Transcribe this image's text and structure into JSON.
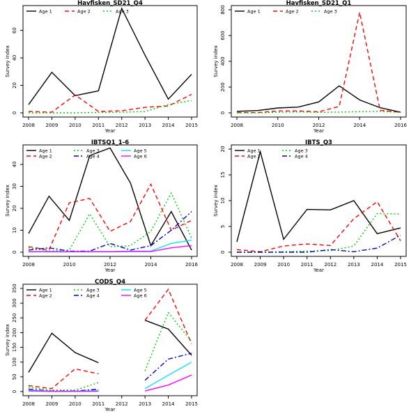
{
  "page": {
    "background": "#ffffff"
  },
  "chart_data": [
    {
      "type": "line",
      "title": "Havfisken_SD21_Q4",
      "xlabel": "Year",
      "ylabel": "Survey index",
      "xlim": [
        2008,
        2015
      ],
      "ylim": [
        0,
        75
      ],
      "xticks": [
        2008,
        2009,
        2010,
        2011,
        2012,
        2013,
        2014,
        2015
      ],
      "yticks": [
        0,
        20,
        40,
        60
      ],
      "grid": false,
      "legend": "top-left",
      "series": [
        {
          "name": "Age 1",
          "color": "#000000",
          "dash": "solid",
          "points": [
            [
              2008,
              6
            ],
            [
              2009,
              29.5
            ],
            [
              2010,
              12.5
            ],
            [
              2011,
              16
            ],
            [
              2012,
              76
            ],
            [
              2013,
              42
            ],
            [
              2014,
              10
            ],
            [
              2015,
              28
            ]
          ]
        },
        {
          "name": "Age 2",
          "color": "#ff0000",
          "dash": "dashed",
          "points": [
            [
              2008,
              1
            ],
            [
              2009,
              0.5
            ],
            [
              2010,
              13
            ],
            [
              2011,
              1
            ],
            [
              2012,
              1.5
            ],
            [
              2013,
              4
            ],
            [
              2014,
              5
            ],
            [
              2015,
              13.5
            ]
          ]
        },
        {
          "name": "Age 3",
          "color": "#00cc00",
          "dash": "dotted",
          "points": [
            [
              2008,
              0
            ],
            [
              2009,
              0
            ],
            [
              2010,
              0
            ],
            [
              2011,
              0.3
            ],
            [
              2012,
              0.5
            ],
            [
              2013,
              1
            ],
            [
              2014,
              6
            ],
            [
              2015,
              9
            ]
          ]
        }
      ]
    },
    {
      "type": "line",
      "title": "Havfisken_SD21_Q1",
      "xlabel": "Year",
      "ylabel": "Survey index",
      "xlim": [
        2008,
        2016
      ],
      "ylim": [
        0,
        800
      ],
      "xticks": [
        2008,
        2010,
        2012,
        2014,
        2016
      ],
      "yticks": [
        0,
        200,
        400,
        600,
        800
      ],
      "grid": false,
      "legend": "top-left",
      "series": [
        {
          "name": "Age 1",
          "color": "#000000",
          "dash": "solid",
          "points": [
            [
              2008,
              12
            ],
            [
              2009,
              18
            ],
            [
              2010,
              38
            ],
            [
              2011,
              45
            ],
            [
              2012,
              85
            ],
            [
              2013,
              210
            ],
            [
              2014,
              100
            ],
            [
              2015,
              40
            ],
            [
              2016,
              5
            ]
          ]
        },
        {
          "name": "Age 2",
          "color": "#ff0000",
          "dash": "dashed",
          "points": [
            [
              2008,
              2
            ],
            [
              2009,
              2
            ],
            [
              2010,
              15
            ],
            [
              2011,
              15
            ],
            [
              2012,
              8
            ],
            [
              2013,
              50
            ],
            [
              2014,
              780
            ],
            [
              2015,
              20
            ],
            [
              2016,
              5
            ]
          ]
        },
        {
          "name": "Age 3",
          "color": "#00cc00",
          "dash": "dotted",
          "points": [
            [
              2008,
              0
            ],
            [
              2009,
              0
            ],
            [
              2010,
              5
            ],
            [
              2011,
              8
            ],
            [
              2012,
              3
            ],
            [
              2013,
              6
            ],
            [
              2014,
              10
            ],
            [
              2015,
              12
            ],
            [
              2016,
              3
            ]
          ]
        }
      ]
    },
    {
      "type": "line",
      "title": "IBTSQ1_1-6",
      "xlabel": "Year",
      "ylabel": "Survey index",
      "xlim": [
        2008,
        2016
      ],
      "ylim": [
        0,
        47
      ],
      "xticks": [
        2008,
        2010,
        2012,
        2014,
        2016
      ],
      "yticks": [
        0,
        10,
        20,
        30,
        40
      ],
      "grid": false,
      "legend": "top-left",
      "series": [
        {
          "name": "Age 1",
          "color": "#000000",
          "dash": "solid",
          "points": [
            [
              2008,
              8.5
            ],
            [
              2009,
              25.5
            ],
            [
              2010,
              14.5
            ],
            [
              2011,
              44
            ],
            [
              2012,
              47.5
            ],
            [
              2013,
              31.5
            ],
            [
              2014,
              3
            ],
            [
              2015,
              18.5
            ],
            [
              2016,
              1
            ]
          ]
        },
        {
          "name": "Age 2",
          "color": "#ff0000",
          "dash": "dashed",
          "points": [
            [
              2008,
              2.5
            ],
            [
              2009,
              1
            ],
            [
              2010,
              22.5
            ],
            [
              2011,
              24.5
            ],
            [
              2012,
              9.5
            ],
            [
              2013,
              14
            ],
            [
              2014,
              31
            ],
            [
              2015,
              10
            ],
            [
              2016,
              14.5
            ]
          ]
        },
        {
          "name": "Age 3",
          "color": "#00cc00",
          "dash": "dotted",
          "points": [
            [
              2008,
              2
            ],
            [
              2009,
              0.5
            ],
            [
              2010,
              1
            ],
            [
              2011,
              17.5
            ],
            [
              2012,
              2.5
            ],
            [
              2013,
              3
            ],
            [
              2014,
              9.5
            ],
            [
              2015,
              27
            ],
            [
              2016,
              6.5
            ]
          ]
        },
        {
          "name": "Age 4",
          "color": "#0000cc",
          "dash": "dashdot",
          "points": [
            [
              2008,
              1
            ],
            [
              2009,
              2
            ],
            [
              2010,
              0.5
            ],
            [
              2011,
              0.5
            ],
            [
              2012,
              4
            ],
            [
              2013,
              1
            ],
            [
              2014,
              3
            ],
            [
              2015,
              10
            ],
            [
              2016,
              18.5
            ]
          ]
        },
        {
          "name": "Age 5",
          "color": "#00e5ff",
          "dash": "solid",
          "points": [
            [
              2008,
              0.3
            ],
            [
              2009,
              0.3
            ],
            [
              2010,
              0.3
            ],
            [
              2011,
              0.3
            ],
            [
              2012,
              0.3
            ],
            [
              2013,
              0.5
            ],
            [
              2014,
              0.5
            ],
            [
              2015,
              4
            ],
            [
              2016,
              5.5
            ]
          ]
        },
        {
          "name": "Age 6",
          "color": "#ff00ff",
          "dash": "solid",
          "points": [
            [
              2008,
              0.2
            ],
            [
              2009,
              0.2
            ],
            [
              2010,
              0.2
            ],
            [
              2011,
              0.2
            ],
            [
              2012,
              0.2
            ],
            [
              2013,
              0.3
            ],
            [
              2014,
              0.3
            ],
            [
              2015,
              2
            ],
            [
              2016,
              3
            ]
          ]
        }
      ]
    },
    {
      "type": "line",
      "title": "IBTS_Q3",
      "xlabel": "Year",
      "ylabel": "Survey index",
      "xlim": [
        2008,
        2015
      ],
      "ylim": [
        0,
        20
      ],
      "xticks": [
        2008,
        2009,
        2010,
        2011,
        2012,
        2013,
        2014,
        2015
      ],
      "yticks": [
        0,
        5,
        10,
        15,
        20
      ],
      "grid": false,
      "legend": "top-left",
      "series": [
        {
          "name": "Age 1",
          "color": "#000000",
          "dash": "solid",
          "points": [
            [
              2008,
              2
            ],
            [
              2009,
              19.5
            ],
            [
              2010,
              2.5
            ],
            [
              2011,
              8.3
            ],
            [
              2012,
              8.2
            ],
            [
              2013,
              10
            ],
            [
              2014,
              3.6
            ],
            [
              2015,
              4.7
            ]
          ]
        },
        {
          "name": "Age 2",
          "color": "#ff0000",
          "dash": "dashed",
          "points": [
            [
              2008,
              0.5
            ],
            [
              2009,
              0.1
            ],
            [
              2010,
              1.2
            ],
            [
              2011,
              1.6
            ],
            [
              2012,
              1.3
            ],
            [
              2013,
              6.5
            ],
            [
              2014,
              9.8
            ],
            [
              2015,
              2.2
            ]
          ]
        },
        {
          "name": "Age 3",
          "color": "#00cc00",
          "dash": "dotted",
          "points": [
            [
              2008,
              0
            ],
            [
              2009,
              0
            ],
            [
              2010,
              0.1
            ],
            [
              2011,
              0.2
            ],
            [
              2012,
              0.3
            ],
            [
              2013,
              1.2
            ],
            [
              2014,
              7.5
            ],
            [
              2015,
              7.4
            ]
          ]
        },
        {
          "name": "Age 4",
          "color": "#0000cc",
          "dash": "dashdot",
          "points": [
            [
              2008,
              0
            ],
            [
              2009,
              0
            ],
            [
              2010,
              0
            ],
            [
              2011,
              0
            ],
            [
              2012,
              0.5
            ],
            [
              2013,
              0.1
            ],
            [
              2014,
              0.8
            ],
            [
              2015,
              3.3
            ]
          ]
        }
      ]
    },
    {
      "type": "line",
      "title": "CODS_Q4",
      "xlabel": "Year",
      "ylabel": "Survey index",
      "xlim": [
        2008,
        2015
      ],
      "ylim": [
        0,
        350
      ],
      "xticks": [
        2008,
        2009,
        2010,
        2011,
        2012,
        2013,
        2014,
        2015
      ],
      "yticks": [
        0,
        50,
        100,
        150,
        200,
        250,
        300,
        350
      ],
      "grid": false,
      "legend": "top-left",
      "series": [
        {
          "name": "Age 1",
          "color": "#000000",
          "dash": "solid",
          "points": [
            [
              2008,
              65
            ],
            [
              2009,
              198
            ],
            [
              2010,
              132
            ],
            [
              2011,
              98
            ],
            [
              2012,
              null
            ],
            [
              2013,
              242
            ],
            [
              2014,
              212
            ],
            [
              2015,
              123
            ]
          ]
        },
        {
          "name": "Age 2",
          "color": "#ff0000",
          "dash": "dashed",
          "points": [
            [
              2008,
              20
            ],
            [
              2009,
              10
            ],
            [
              2010,
              77
            ],
            [
              2011,
              60
            ],
            [
              2012,
              null
            ],
            [
              2013,
              242
            ],
            [
              2014,
              347
            ],
            [
              2015,
              162
            ]
          ]
        },
        {
          "name": "Age 3",
          "color": "#00cc00",
          "dash": "dotted",
          "points": [
            [
              2008,
              15
            ],
            [
              2009,
              5
            ],
            [
              2010,
              5
            ],
            [
              2011,
              30
            ],
            [
              2012,
              null
            ],
            [
              2013,
              70
            ],
            [
              2014,
              268
            ],
            [
              2015,
              170
            ]
          ]
        },
        {
          "name": "Age 4",
          "color": "#0000cc",
          "dash": "dashdot",
          "points": [
            [
              2008,
              8
            ],
            [
              2009,
              2
            ],
            [
              2010,
              2
            ],
            [
              2011,
              8
            ],
            [
              2012,
              null
            ],
            [
              2013,
              38
            ],
            [
              2014,
              110
            ],
            [
              2015,
              130
            ]
          ]
        },
        {
          "name": "Age 5",
          "color": "#00e5ff",
          "dash": "solid",
          "points": [
            [
              2008,
              5
            ],
            [
              2009,
              1
            ],
            [
              2010,
              1
            ],
            [
              2011,
              3
            ],
            [
              2012,
              null
            ],
            [
              2013,
              10
            ],
            [
              2014,
              55
            ],
            [
              2015,
              100
            ]
          ]
        },
        {
          "name": "Age 6",
          "color": "#ff00ff",
          "dash": "solid",
          "points": [
            [
              2008,
              2
            ],
            [
              2009,
              0.5
            ],
            [
              2010,
              0.5
            ],
            [
              2011,
              1
            ],
            [
              2012,
              null
            ],
            [
              2013,
              2
            ],
            [
              2014,
              22
            ],
            [
              2015,
              56
            ]
          ]
        }
      ]
    }
  ]
}
